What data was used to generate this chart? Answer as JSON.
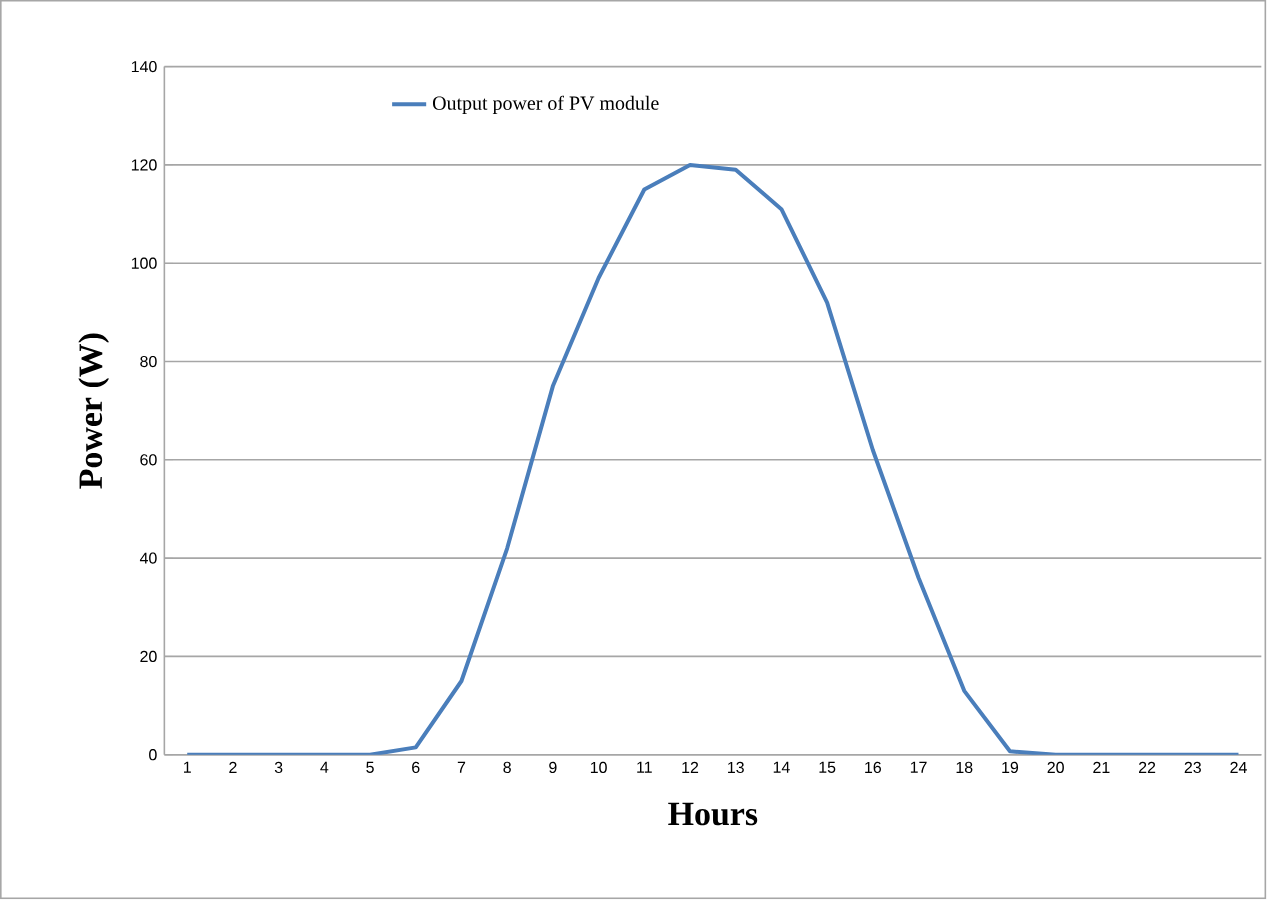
{
  "chart_data": {
    "type": "line",
    "xlabel": "Hours",
    "ylabel": "Power (W)",
    "categories": [
      "1",
      "2",
      "3",
      "4",
      "5",
      "6",
      "7",
      "8",
      "9",
      "10",
      "11",
      "12",
      "13",
      "14",
      "15",
      "16",
      "17",
      "18",
      "19",
      "20",
      "21",
      "22",
      "23",
      "24"
    ],
    "series": [
      {
        "name": "Output power of PV module",
        "color": "#4a7ebb",
        "values": [
          0,
          0,
          0,
          0,
          0,
          1.5,
          15,
          42,
          75,
          97,
          115,
          120,
          119,
          111,
          92,
          62,
          36,
          13,
          0.7,
          0,
          0,
          0,
          0,
          0
        ]
      }
    ],
    "ylim": [
      0,
      140
    ],
    "yticks": [
      0,
      20,
      40,
      60,
      80,
      100,
      120,
      140
    ],
    "grid": "y",
    "legend": "top",
    "marker": "none",
    "line_style": "solid"
  }
}
